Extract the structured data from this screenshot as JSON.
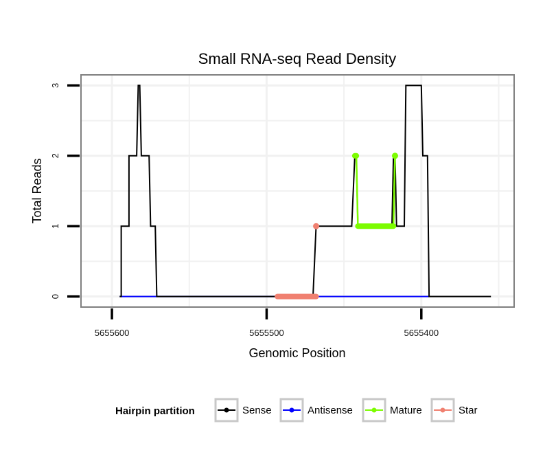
{
  "chart_data": {
    "type": "line",
    "title": "Small RNA-seq Read Density",
    "xlabel": "Genomic Position",
    "ylabel": "Total Reads",
    "x_reversed": true,
    "xlim": [
      5655620,
      5655340
    ],
    "ylim": [
      -0.15,
      3.15
    ],
    "x_ticks": [
      5655600,
      5655500,
      5655400
    ],
    "x_tick_labels": [
      "5655600",
      "5655500",
      "5655400"
    ],
    "y_ticks": [
      0,
      1,
      2,
      3
    ],
    "y_tick_labels": [
      "0",
      "1",
      "2",
      "3"
    ],
    "grid": true,
    "series": [
      {
        "name": "Sense",
        "color": "#000000",
        "points": [
          [
            5655595,
            0
          ],
          [
            5655594,
            0
          ],
          [
            5655594,
            1
          ],
          [
            5655589,
            1
          ],
          [
            5655589,
            2
          ],
          [
            5655584,
            2
          ],
          [
            5655583,
            3
          ],
          [
            5655582,
            3
          ],
          [
            5655581,
            2
          ],
          [
            5655576,
            2
          ],
          [
            5655575,
            1
          ],
          [
            5655572,
            1
          ],
          [
            5655571,
            0
          ],
          [
            5655470,
            0
          ],
          [
            5655468,
            1
          ],
          [
            5655445,
            1
          ],
          [
            5655443,
            2
          ],
          [
            5655442,
            2
          ],
          [
            5655441,
            1
          ],
          [
            5655419,
            1
          ],
          [
            5655418,
            2
          ],
          [
            5655417,
            2
          ],
          [
            5655416,
            1
          ],
          [
            5655411,
            1
          ],
          [
            5655410,
            3
          ],
          [
            5655400,
            3
          ],
          [
            5655399,
            2
          ],
          [
            5655396,
            2
          ],
          [
            5655395,
            0
          ],
          [
            5655355,
            0
          ]
        ]
      },
      {
        "name": "Antisense",
        "color": "#0000ff",
        "points": [
          [
            5655595,
            0
          ],
          [
            5655395,
            0
          ]
        ]
      },
      {
        "name": "Mature",
        "color": "#7cfc00",
        "points": [
          [
            5655443,
            2
          ],
          [
            5655442,
            2
          ],
          [
            5655441,
            1
          ],
          [
            5655418,
            1
          ],
          [
            5655417,
            2
          ]
        ]
      },
      {
        "name": "Star",
        "color": "#f08070",
        "points": [
          [
            5655468,
            1
          ],
          [
            5655493,
            0
          ],
          [
            5655468,
            0
          ]
        ]
      }
    ],
    "legend": {
      "title": "Hairpin partition",
      "position": "bottom",
      "entries": [
        "Sense",
        "Antisense",
        "Mature",
        "Star"
      ]
    }
  }
}
